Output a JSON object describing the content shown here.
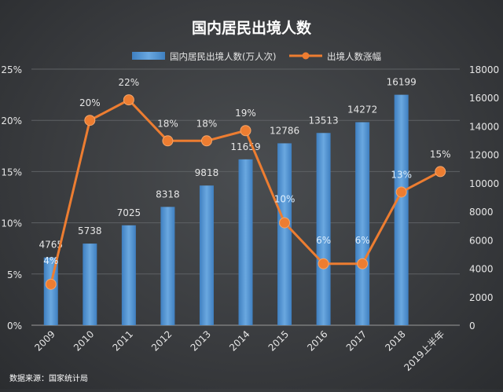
{
  "chart_data": {
    "type": "bar+line",
    "title": "国内居民出境人数",
    "categories": [
      "2009",
      "2010",
      "2011",
      "2012",
      "2013",
      "2014",
      "2015",
      "2016",
      "2017",
      "2018",
      "2019上半年"
    ],
    "series": [
      {
        "name": "国内居民出境人数(万人次)",
        "type": "bar",
        "axis": "right",
        "values": [
          4765,
          5738,
          7025,
          8318,
          9818,
          11659,
          12786,
          13513,
          14272,
          16199,
          null
        ],
        "labels": [
          "4765",
          "5738",
          "7025",
          "8318",
          "9818",
          "11659",
          "12786",
          "13513",
          "14272",
          "16199",
          ""
        ]
      },
      {
        "name": "出境人数涨幅",
        "type": "line",
        "axis": "left",
        "values": [
          0.04,
          0.2,
          0.22,
          0.18,
          0.18,
          0.19,
          0.1,
          0.06,
          0.06,
          0.13,
          0.15
        ],
        "labels": [
          "4%",
          "20%",
          "22%",
          "18%",
          "18%",
          "19%",
          "10%",
          "6%",
          "6%",
          "13%",
          "15%"
        ]
      }
    ],
    "y_left": {
      "ticks": [
        "0%",
        "5%",
        "10%",
        "15%",
        "20%",
        "25%"
      ],
      "range": [
        0,
        0.25
      ]
    },
    "y_right": {
      "ticks": [
        "0",
        "2000",
        "4000",
        "6000",
        "8000",
        "10000",
        "12000",
        "14000",
        "16000",
        "18000"
      ],
      "range": [
        0,
        18000
      ]
    },
    "legend_position": "top-center",
    "grid": true,
    "colors": {
      "bar": "#5b9bd5",
      "line": "#ed7d31",
      "text": "#e6e6e6"
    }
  },
  "source": "数据来源：国家统计局"
}
